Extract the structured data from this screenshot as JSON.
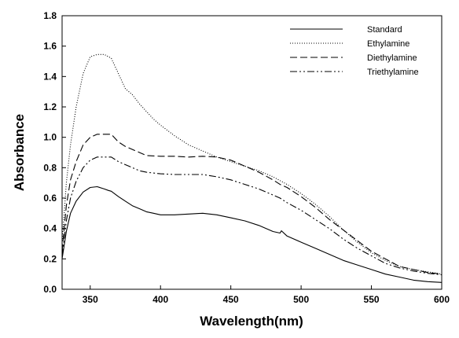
{
  "chart_data": {
    "type": "line",
    "xlabel": "Wavelength(nm)",
    "ylabel": "Absorbance",
    "xlim": [
      330,
      600
    ],
    "ylim": [
      0,
      1.8
    ],
    "x_ticks": [
      "350",
      "400",
      "450",
      "500",
      "550",
      "600"
    ],
    "y_ticks": [
      "0.0",
      "0.2",
      "0.4",
      "0.6",
      "0.8",
      "1.0",
      "1.2",
      "1.4",
      "1.6",
      "1.8"
    ],
    "grid": false,
    "legend_position": "top-right",
    "series": [
      {
        "name": "Standard",
        "style": "solid",
        "x": [
          330,
          333,
          336,
          340,
          345,
          350,
          355,
          360,
          363,
          365,
          370,
          375,
          380,
          385,
          390,
          395,
          400,
          410,
          420,
          430,
          440,
          450,
          460,
          470,
          480,
          485,
          486,
          490,
          500,
          510,
          520,
          530,
          540,
          550,
          560,
          570,
          580,
          590,
          600
        ],
        "y": [
          0.2,
          0.38,
          0.5,
          0.58,
          0.64,
          0.67,
          0.675,
          0.66,
          0.65,
          0.645,
          0.61,
          0.58,
          0.55,
          0.53,
          0.51,
          0.5,
          0.49,
          0.49,
          0.495,
          0.5,
          0.49,
          0.47,
          0.45,
          0.42,
          0.38,
          0.37,
          0.385,
          0.35,
          0.31,
          0.27,
          0.23,
          0.19,
          0.16,
          0.13,
          0.1,
          0.08,
          0.06,
          0.05,
          0.045
        ]
      },
      {
        "name": "Ethylamine",
        "style": "dotted",
        "x": [
          330,
          333,
          336,
          340,
          345,
          350,
          355,
          360,
          365,
          370,
          375,
          380,
          385,
          390,
          395,
          400,
          410,
          420,
          430,
          440,
          450,
          460,
          470,
          480,
          490,
          500,
          510,
          520,
          530,
          540,
          550,
          560,
          570,
          580,
          590,
          600
        ],
        "y": [
          0.3,
          0.7,
          0.95,
          1.2,
          1.42,
          1.53,
          1.545,
          1.545,
          1.52,
          1.42,
          1.32,
          1.28,
          1.22,
          1.17,
          1.12,
          1.08,
          1.01,
          0.95,
          0.91,
          0.87,
          0.84,
          0.81,
          0.78,
          0.74,
          0.69,
          0.63,
          0.56,
          0.48,
          0.39,
          0.31,
          0.24,
          0.19,
          0.15,
          0.13,
          0.115,
          0.1
        ]
      },
      {
        "name": "Diethylamine",
        "style": "dashed",
        "x": [
          330,
          333,
          336,
          340,
          345,
          350,
          355,
          360,
          365,
          370,
          375,
          380,
          385,
          390,
          400,
          410,
          420,
          430,
          440,
          450,
          460,
          470,
          480,
          485,
          490,
          500,
          510,
          520,
          530,
          540,
          550,
          560,
          570,
          580,
          590,
          600
        ],
        "y": [
          0.25,
          0.55,
          0.72,
          0.84,
          0.95,
          1.0,
          1.02,
          1.02,
          1.02,
          0.97,
          0.94,
          0.92,
          0.9,
          0.88,
          0.875,
          0.875,
          0.87,
          0.875,
          0.87,
          0.85,
          0.81,
          0.77,
          0.72,
          0.69,
          0.67,
          0.61,
          0.54,
          0.46,
          0.39,
          0.32,
          0.25,
          0.2,
          0.15,
          0.13,
          0.11,
          0.1
        ]
      },
      {
        "name": "Triethylamine",
        "style": "dash-dot-dot",
        "x": [
          330,
          333,
          336,
          340,
          345,
          350,
          355,
          360,
          365,
          370,
          375,
          380,
          385,
          390,
          400,
          410,
          420,
          430,
          440,
          450,
          460,
          470,
          480,
          485,
          490,
          500,
          510,
          520,
          530,
          540,
          550,
          560,
          570,
          580,
          590,
          600
        ],
        "y": [
          0.22,
          0.45,
          0.6,
          0.71,
          0.8,
          0.85,
          0.87,
          0.87,
          0.87,
          0.84,
          0.82,
          0.8,
          0.78,
          0.77,
          0.76,
          0.755,
          0.755,
          0.755,
          0.74,
          0.72,
          0.69,
          0.66,
          0.62,
          0.6,
          0.57,
          0.52,
          0.46,
          0.4,
          0.33,
          0.27,
          0.22,
          0.17,
          0.14,
          0.12,
          0.105,
          0.095
        ]
      }
    ]
  }
}
